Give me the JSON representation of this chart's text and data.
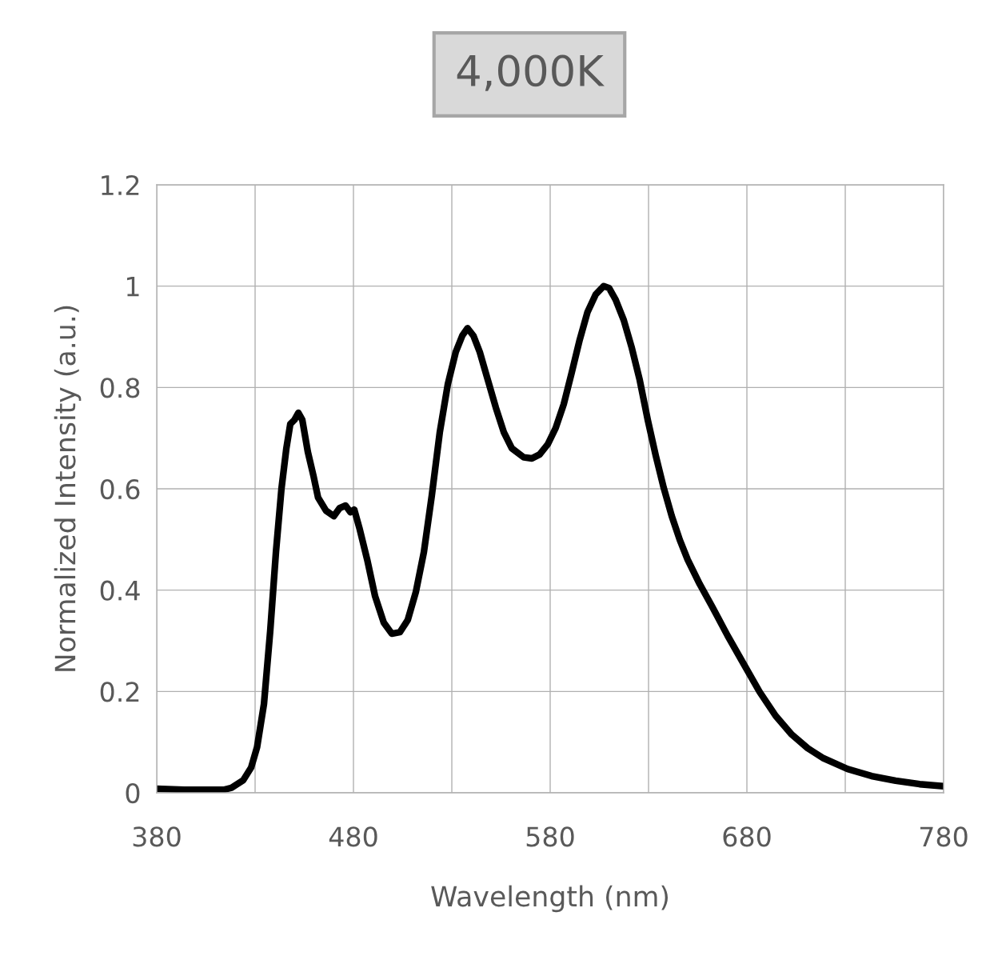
{
  "chart_data": {
    "type": "line",
    "title": "4,000K",
    "xlabel": "Wavelength (nm)",
    "ylabel": "Normalized Intensity (a.u.)",
    "xlim": [
      380,
      780
    ],
    "xticks": [
      380,
      {
        "value": 430,
        "label": null
      },
      480,
      {
        "value": 530,
        "label": null
      },
      580,
      {
        "value": 630,
        "label": null
      },
      680,
      {
        "value": 730,
        "label": null
      },
      780
    ],
    "ylim": [
      0,
      1.2
    ],
    "yticks": [
      0,
      0.2,
      0.4,
      0.6,
      0.8,
      1,
      1.2
    ],
    "grid": true,
    "legend": false,
    "marker": "none",
    "line_style": "solid",
    "series": [
      {
        "color": "#000000",
        "x": [
          380,
          394,
          414,
          418,
          424,
          428,
          431,
          434.5,
          437.7,
          440.6,
          443.4,
          445.9,
          447.9,
          450,
          452,
          454,
          456.8,
          459.7,
          462,
          466,
          470,
          473,
          476,
          478.4,
          480.4,
          483,
          487,
          491,
          495.4,
          499.5,
          503.6,
          507.6,
          511.7,
          515.8,
          519.8,
          523.9,
          528,
          532,
          535.3,
          538,
          541,
          544.2,
          548.3,
          552.4,
          556.4,
          560.5,
          566.6,
          570.7,
          574.7,
          578.8,
          582.8,
          586.9,
          591,
          595,
          599,
          603.2,
          607.2,
          610,
          613.3,
          617.4,
          621.5,
          625.5,
          629.6,
          633.7,
          637.7,
          641.8,
          645.9,
          649.9,
          656,
          662,
          670.2,
          678.4,
          686.5,
          694.6,
          702.8,
          710.9,
          719,
          731.2,
          743.4,
          755.6,
          767.8,
          780
        ],
        "values": [
          0.008,
          0.006,
          0.006,
          0.01,
          0.025,
          0.05,
          0.09,
          0.175,
          0.32,
          0.475,
          0.6,
          0.68,
          0.728,
          0.736,
          0.75,
          0.736,
          0.673,
          0.625,
          0.583,
          0.557,
          0.546,
          0.562,
          0.567,
          0.554,
          0.559,
          0.523,
          0.46,
          0.388,
          0.336,
          0.314,
          0.317,
          0.341,
          0.396,
          0.475,
          0.586,
          0.712,
          0.807,
          0.87,
          0.902,
          0.917,
          0.902,
          0.87,
          0.815,
          0.76,
          0.712,
          0.68,
          0.662,
          0.66,
          0.668,
          0.688,
          0.72,
          0.767,
          0.83,
          0.894,
          0.949,
          0.984,
          1.0,
          0.996,
          0.973,
          0.933,
          0.878,
          0.815,
          0.736,
          0.665,
          0.602,
          0.546,
          0.499,
          0.46,
          0.412,
          0.37,
          0.31,
          0.254,
          0.199,
          0.152,
          0.115,
          0.088,
          0.068,
          0.047,
          0.033,
          0.024,
          0.017,
          0.013
        ]
      }
    ]
  }
}
